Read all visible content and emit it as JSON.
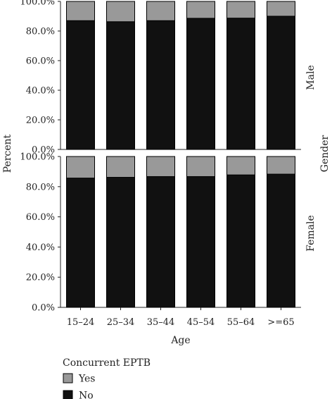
{
  "chart_data": {
    "type": "bar",
    "stacked": true,
    "facets": {
      "title": "Gender",
      "panels": [
        "Male",
        "Female"
      ]
    },
    "categories": [
      "15–24",
      "25–34",
      "35–44",
      "45–54",
      "55–64",
      ">=65"
    ],
    "series": [
      {
        "name": "No",
        "color": "#111111",
        "values": {
          "Male": [
            87.0,
            86.3,
            87.0,
            88.6,
            88.7,
            90.0
          ],
          "Female": [
            85.7,
            86.2,
            86.7,
            86.7,
            87.8,
            88.3
          ]
        }
      },
      {
        "name": "Yes",
        "color": "#999999",
        "values": {
          "Male": [
            13.0,
            13.7,
            13.0,
            11.4,
            11.3,
            10.0
          ],
          "Female": [
            14.3,
            13.8,
            13.3,
            13.3,
            12.2,
            11.7
          ]
        }
      }
    ],
    "xlabel": "Age",
    "ylabel": "Percent",
    "ylim": [
      0,
      100
    ],
    "yticks": [
      "0.0%",
      "20.0%",
      "40.0%",
      "60.0%",
      "80.0%",
      "100.0%"
    ],
    "legend": {
      "title": "Concurrent EPTB",
      "position": "bottom-left",
      "entries": [
        "Yes",
        "No"
      ]
    },
    "grid": false
  }
}
